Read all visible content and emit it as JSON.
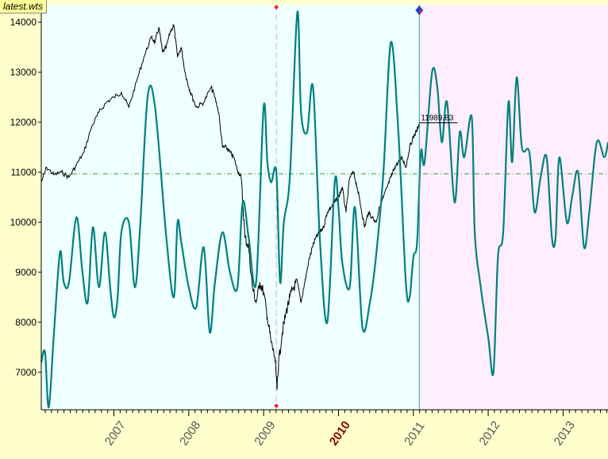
{
  "file_tag": "latest.wts",
  "colors": {
    "background_past": "#f0ffff",
    "background_future": "#ffeeff",
    "outer_background": "#ffffcc",
    "price_line": "#000000",
    "cycle_line": "#008080",
    "reference_line": "#3a9a3a",
    "cursor_line": "#3399aa",
    "marker_dash": "#bbbbbb",
    "marker_red": "#ff2222",
    "cursor_marker": "#2244cc"
  },
  "chart_data": {
    "type": "line",
    "xlabel": "",
    "ylabel": "",
    "xlim": [
      2006.03,
      2013.6
    ],
    "ylim": [
      6250,
      14350
    ],
    "yticks": [
      7000,
      8000,
      9000,
      10000,
      11000,
      12000,
      13000,
      14000
    ],
    "ytick_labels": [
      "7000",
      "8000",
      "9000",
      "10000",
      "11000",
      "12000",
      "13000",
      "14000"
    ],
    "xticks": [
      2007,
      2008,
      2009,
      2010,
      2011,
      2012,
      2013
    ],
    "xtick_labels": [
      "2007",
      "2008",
      "2009",
      "2010",
      "2011",
      "2012",
      "2013"
    ],
    "highlight_xtick": "2010",
    "reference_level": 10970,
    "marker_date": 2009.17,
    "cursor_date": 2011.08,
    "cursor_value": 11989.83,
    "cursor_value_label": "11989.83",
    "grid": false,
    "legend": "none",
    "series": [
      {
        "role": "price",
        "x": [
          2006.03,
          2006.1,
          2006.2,
          2006.3,
          2006.4,
          2006.5,
          2006.6,
          2006.7,
          2006.8,
          2006.9,
          2007.0,
          2007.1,
          2007.2,
          2007.3,
          2007.4,
          2007.5,
          2007.55,
          2007.6,
          2007.65,
          2007.7,
          2007.75,
          2007.8,
          2007.85,
          2007.9,
          2007.95,
          2008.0,
          2008.05,
          2008.1,
          2008.2,
          2008.3,
          2008.35,
          2008.4,
          2008.45,
          2008.5,
          2008.55,
          2008.6,
          2008.65,
          2008.7,
          2008.75,
          2008.8,
          2008.85,
          2008.9,
          2008.95,
          2009.0,
          2009.05,
          2009.1,
          2009.15,
          2009.18,
          2009.2,
          2009.25,
          2009.3,
          2009.35,
          2009.4,
          2009.45,
          2009.5,
          2009.55,
          2009.6,
          2009.65,
          2009.7,
          2009.75,
          2009.8,
          2009.85,
          2009.9,
          2009.95,
          2010.0,
          2010.05,
          2010.1,
          2010.15,
          2010.2,
          2010.25,
          2010.3,
          2010.35,
          2010.4,
          2010.45,
          2010.5,
          2010.55,
          2010.6,
          2010.65,
          2010.7,
          2010.75,
          2010.8,
          2010.85,
          2010.9,
          2010.95,
          2011.0,
          2011.05,
          2011.08
        ],
        "y": [
          10800,
          11100,
          10950,
          11000,
          10900,
          11150,
          11400,
          11900,
          12200,
          12400,
          12500,
          12600,
          12300,
          12800,
          13300,
          13700,
          13600,
          13900,
          13400,
          13500,
          13800,
          13950,
          13300,
          13500,
          13000,
          12700,
          12500,
          12300,
          12400,
          12700,
          12500,
          12200,
          11500,
          11500,
          11400,
          11300,
          11050,
          10900,
          9700,
          9500,
          8700,
          8400,
          8800,
          8600,
          8100,
          7600,
          7300,
          6650,
          7200,
          7800,
          8200,
          8500,
          8700,
          8800,
          8400,
          8800,
          9200,
          9500,
          9700,
          9800,
          9900,
          10200,
          10300,
          10400,
          10500,
          10700,
          10200,
          10900,
          11000,
          10700,
          10300,
          9900,
          10200,
          10100,
          10000,
          10300,
          10500,
          10700,
          10900,
          11100,
          11200,
          11300,
          11100,
          11500,
          11700,
          11850,
          11990
        ]
      },
      {
        "role": "cycle",
        "x": [
          2006.03,
          2006.08,
          2006.13,
          2006.2,
          2006.28,
          2006.33,
          2006.4,
          2006.5,
          2006.58,
          2006.65,
          2006.72,
          2006.8,
          2006.88,
          2006.95,
          2007.0,
          2007.05,
          2007.1,
          2007.2,
          2007.28,
          2007.35,
          2007.45,
          2007.55,
          2007.7,
          2007.8,
          2007.85,
          2007.9,
          2008.0,
          2008.1,
          2008.2,
          2008.28,
          2008.35,
          2008.45,
          2008.55,
          2008.65,
          2008.72,
          2008.8,
          2008.9,
          2009.0,
          2009.05,
          2009.1,
          2009.17,
          2009.22,
          2009.27,
          2009.35,
          2009.45,
          2009.5,
          2009.58,
          2009.66,
          2009.75,
          2009.85,
          2009.95,
          2010.0,
          2010.05,
          2010.15,
          2010.22,
          2010.32,
          2010.42,
          2010.5,
          2010.6,
          2010.7,
          2010.8,
          2010.9,
          2010.95,
          2011.0,
          2011.05,
          2011.1,
          2011.15,
          2011.25,
          2011.32,
          2011.38,
          2011.45,
          2011.55,
          2011.62,
          2011.68,
          2011.78,
          2011.82,
          2011.9,
          2012.0,
          2012.07,
          2012.13,
          2012.2,
          2012.27,
          2012.32,
          2012.38,
          2012.45,
          2012.55,
          2012.62,
          2012.7,
          2012.78,
          2012.85,
          2012.9,
          2012.95,
          2013.05,
          2013.12,
          2013.2,
          2013.28,
          2013.35,
          2013.45,
          2013.55,
          2013.6
        ],
        "y": [
          7200,
          7400,
          6300,
          7800,
          9400,
          8800,
          8800,
          10100,
          9000,
          8400,
          9900,
          8700,
          9800,
          8700,
          8100,
          8500,
          9800,
          10000,
          8700,
          9900,
          12500,
          12300,
          9700,
          8500,
          10000,
          9600,
          8700,
          8300,
          9500,
          7800,
          8800,
          9800,
          9000,
          8700,
          10400,
          9700,
          8800,
          12300,
          11200,
          10800,
          11000,
          8800,
          10000,
          10900,
          14200,
          12200,
          11800,
          12700,
          9700,
          8000,
          10800,
          10300,
          9200,
          8700,
          10300,
          7900,
          8400,
          9300,
          11000,
          13600,
          11800,
          8800,
          8500,
          9300,
          9600,
          11400,
          11200,
          13000,
          12700,
          11600,
          12400,
          10400,
          11800,
          11300,
          12100,
          9800,
          8700,
          7700,
          7000,
          9300,
          9800,
          12400,
          11200,
          12900,
          11500,
          11400,
          10200,
          10900,
          11300,
          9700,
          9700,
          11300,
          10000,
          10500,
          11000,
          9500,
          10200,
          11600,
          11300,
          11600
        ]
      }
    ]
  }
}
